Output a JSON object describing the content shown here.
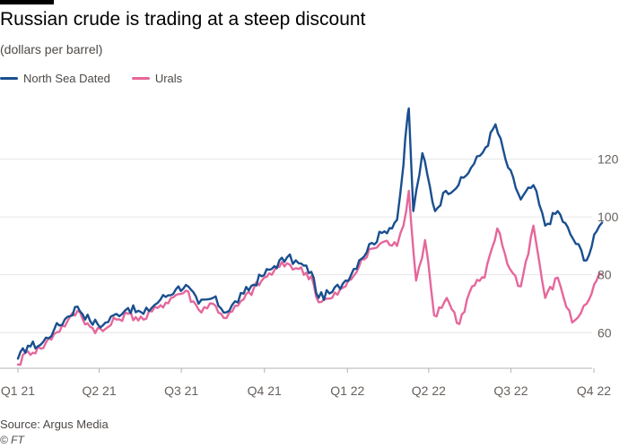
{
  "header": {
    "title": "Russian crude is trading at a steep discount",
    "subtitle": "(dollars per barrel)"
  },
  "footer": {
    "source": "Source: Argus Media",
    "credit": "© FT"
  },
  "colors": {
    "north_sea": "#1a4f8f",
    "urals": "#e5679b",
    "grid": "#e6e6e6",
    "axis_text": "#66605c"
  },
  "chart_data": {
    "type": "line",
    "title": "Russian crude is trading at a steep discount",
    "subtitle": "(dollars per barrel)",
    "y_axis_position": "right",
    "ylim": [
      48,
      144
    ],
    "yticks": [
      60,
      80,
      100,
      120
    ],
    "x_tick_labels": [
      "Q1 21",
      "Q2 21",
      "Q3 21",
      "Q4 21",
      "Q1 22",
      "Q2 22",
      "Q3 22",
      "Q4 22"
    ],
    "x_tick_dates": [
      "2021-01-01",
      "2021-04-01",
      "2021-07-01",
      "2021-10-01",
      "2022-01-01",
      "2022-04-01",
      "2022-07-01",
      "2022-10-01"
    ],
    "grid": "horizontal",
    "legend_placement": "top-left",
    "series": [
      {
        "name": "North Sea Dated",
        "color": "#1a4f8f",
        "points": [
          [
            "2021-01-01",
            51
          ],
          [
            "2021-01-12",
            55.5
          ],
          [
            "2021-01-26",
            55.8
          ],
          [
            "2021-02-10",
            61
          ],
          [
            "2021-02-25",
            65.5
          ],
          [
            "2021-03-08",
            69
          ],
          [
            "2021-03-22",
            64
          ],
          [
            "2021-04-05",
            62.5
          ],
          [
            "2021-04-20",
            66.5
          ],
          [
            "2021-05-03",
            68.5
          ],
          [
            "2021-05-20",
            66.5
          ],
          [
            "2021-06-08",
            71.5
          ],
          [
            "2021-06-25",
            75
          ],
          [
            "2021-07-06",
            76.5
          ],
          [
            "2021-07-20",
            70
          ],
          [
            "2021-08-05",
            72
          ],
          [
            "2021-08-20",
            67
          ],
          [
            "2021-09-08",
            73.5
          ],
          [
            "2021-09-28",
            79.5
          ],
          [
            "2021-10-12",
            83
          ],
          [
            "2021-10-26",
            86
          ],
          [
            "2021-11-08",
            84
          ],
          [
            "2021-11-22",
            81
          ],
          [
            "2021-11-30",
            72
          ],
          [
            "2021-12-15",
            74
          ],
          [
            "2021-12-30",
            78
          ],
          [
            "2022-01-14",
            85
          ],
          [
            "2022-01-28",
            91
          ],
          [
            "2022-02-11",
            95
          ],
          [
            "2022-02-25",
            99
          ],
          [
            "2022-03-04",
            118
          ],
          [
            "2022-03-08",
            133
          ],
          [
            "2022-03-10",
            137.5
          ],
          [
            "2022-03-15",
            102
          ],
          [
            "2022-03-25",
            122
          ],
          [
            "2022-04-08",
            102
          ],
          [
            "2022-04-20",
            109
          ],
          [
            "2022-05-04",
            111
          ],
          [
            "2022-05-18",
            117
          ],
          [
            "2022-06-03",
            124
          ],
          [
            "2022-06-14",
            132
          ],
          [
            "2022-06-28",
            117
          ],
          [
            "2022-07-12",
            106
          ],
          [
            "2022-07-26",
            111
          ],
          [
            "2022-08-08",
            97
          ],
          [
            "2022-08-22",
            102
          ],
          [
            "2022-09-05",
            94
          ],
          [
            "2022-09-23",
            85
          ],
          [
            "2022-10-04",
            95
          ],
          [
            "2022-10-10",
            98
          ]
        ]
      },
      {
        "name": "Urals",
        "color": "#e5679b",
        "points": [
          [
            "2021-01-01",
            49
          ],
          [
            "2021-01-12",
            53.5
          ],
          [
            "2021-01-26",
            54.5
          ],
          [
            "2021-02-10",
            59.5
          ],
          [
            "2021-02-25",
            64
          ],
          [
            "2021-03-08",
            67.5
          ],
          [
            "2021-03-22",
            62
          ],
          [
            "2021-04-05",
            60.5
          ],
          [
            "2021-04-20",
            64.5
          ],
          [
            "2021-05-03",
            66.5
          ],
          [
            "2021-05-20",
            64.5
          ],
          [
            "2021-06-08",
            69.5
          ],
          [
            "2021-06-25",
            73
          ],
          [
            "2021-07-06",
            74.5
          ],
          [
            "2021-07-20",
            68
          ],
          [
            "2021-08-05",
            70
          ],
          [
            "2021-08-20",
            65
          ],
          [
            "2021-09-08",
            71.5
          ],
          [
            "2021-09-28",
            78
          ],
          [
            "2021-10-12",
            81.5
          ],
          [
            "2021-10-26",
            84
          ],
          [
            "2021-11-08",
            82
          ],
          [
            "2021-11-22",
            79.5
          ],
          [
            "2021-11-30",
            70.5
          ],
          [
            "2021-12-15",
            72
          ],
          [
            "2021-12-30",
            76
          ],
          [
            "2022-01-14",
            83
          ],
          [
            "2022-01-28",
            89
          ],
          [
            "2022-02-11",
            91.5
          ],
          [
            "2022-02-25",
            90
          ],
          [
            "2022-03-04",
            97
          ],
          [
            "2022-03-10",
            109
          ],
          [
            "2022-03-18",
            78
          ],
          [
            "2022-03-28",
            92
          ],
          [
            "2022-04-07",
            66
          ],
          [
            "2022-04-21",
            72
          ],
          [
            "2022-05-05",
            63
          ],
          [
            "2022-05-19",
            76
          ],
          [
            "2022-06-02",
            79
          ],
          [
            "2022-06-16",
            96
          ],
          [
            "2022-06-30",
            82
          ],
          [
            "2022-07-12",
            76
          ],
          [
            "2022-07-26",
            97
          ],
          [
            "2022-08-08",
            72
          ],
          [
            "2022-08-22",
            79
          ],
          [
            "2022-09-07",
            63.5
          ],
          [
            "2022-09-23",
            70
          ],
          [
            "2022-10-04",
            78
          ],
          [
            "2022-10-10",
            80
          ]
        ]
      }
    ]
  }
}
